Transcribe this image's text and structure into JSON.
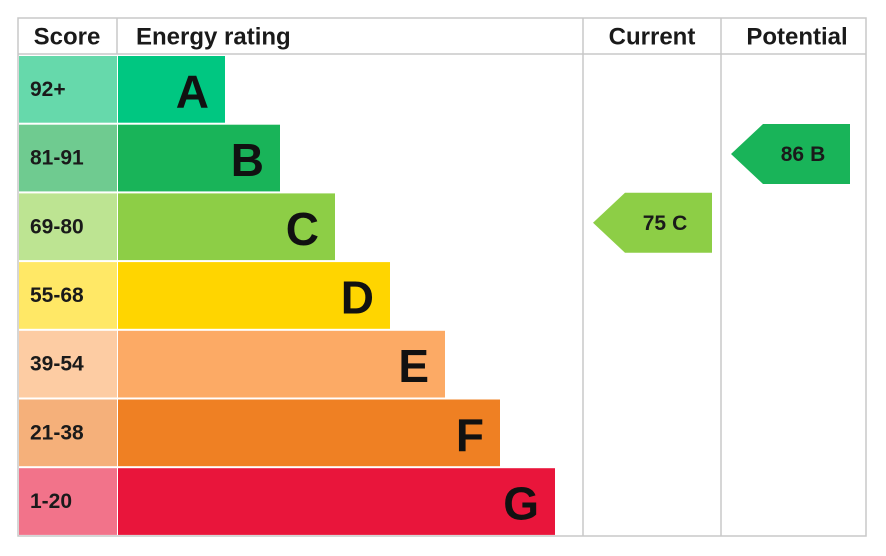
{
  "header": {
    "score": "Score",
    "energy_rating": "Energy rating",
    "current": "Current",
    "potential": "Potential"
  },
  "bands": [
    {
      "score": "92+",
      "letter": "A"
    },
    {
      "score": "81-91",
      "letter": "B"
    },
    {
      "score": "69-80",
      "letter": "C"
    },
    {
      "score": "55-68",
      "letter": "D"
    },
    {
      "score": "39-54",
      "letter": "E"
    },
    {
      "score": "21-38",
      "letter": "F"
    },
    {
      "score": "1-20",
      "letter": "G"
    }
  ],
  "current": {
    "value": 75,
    "rating": "C"
  },
  "potential": {
    "value": 86,
    "rating": "B"
  }
}
